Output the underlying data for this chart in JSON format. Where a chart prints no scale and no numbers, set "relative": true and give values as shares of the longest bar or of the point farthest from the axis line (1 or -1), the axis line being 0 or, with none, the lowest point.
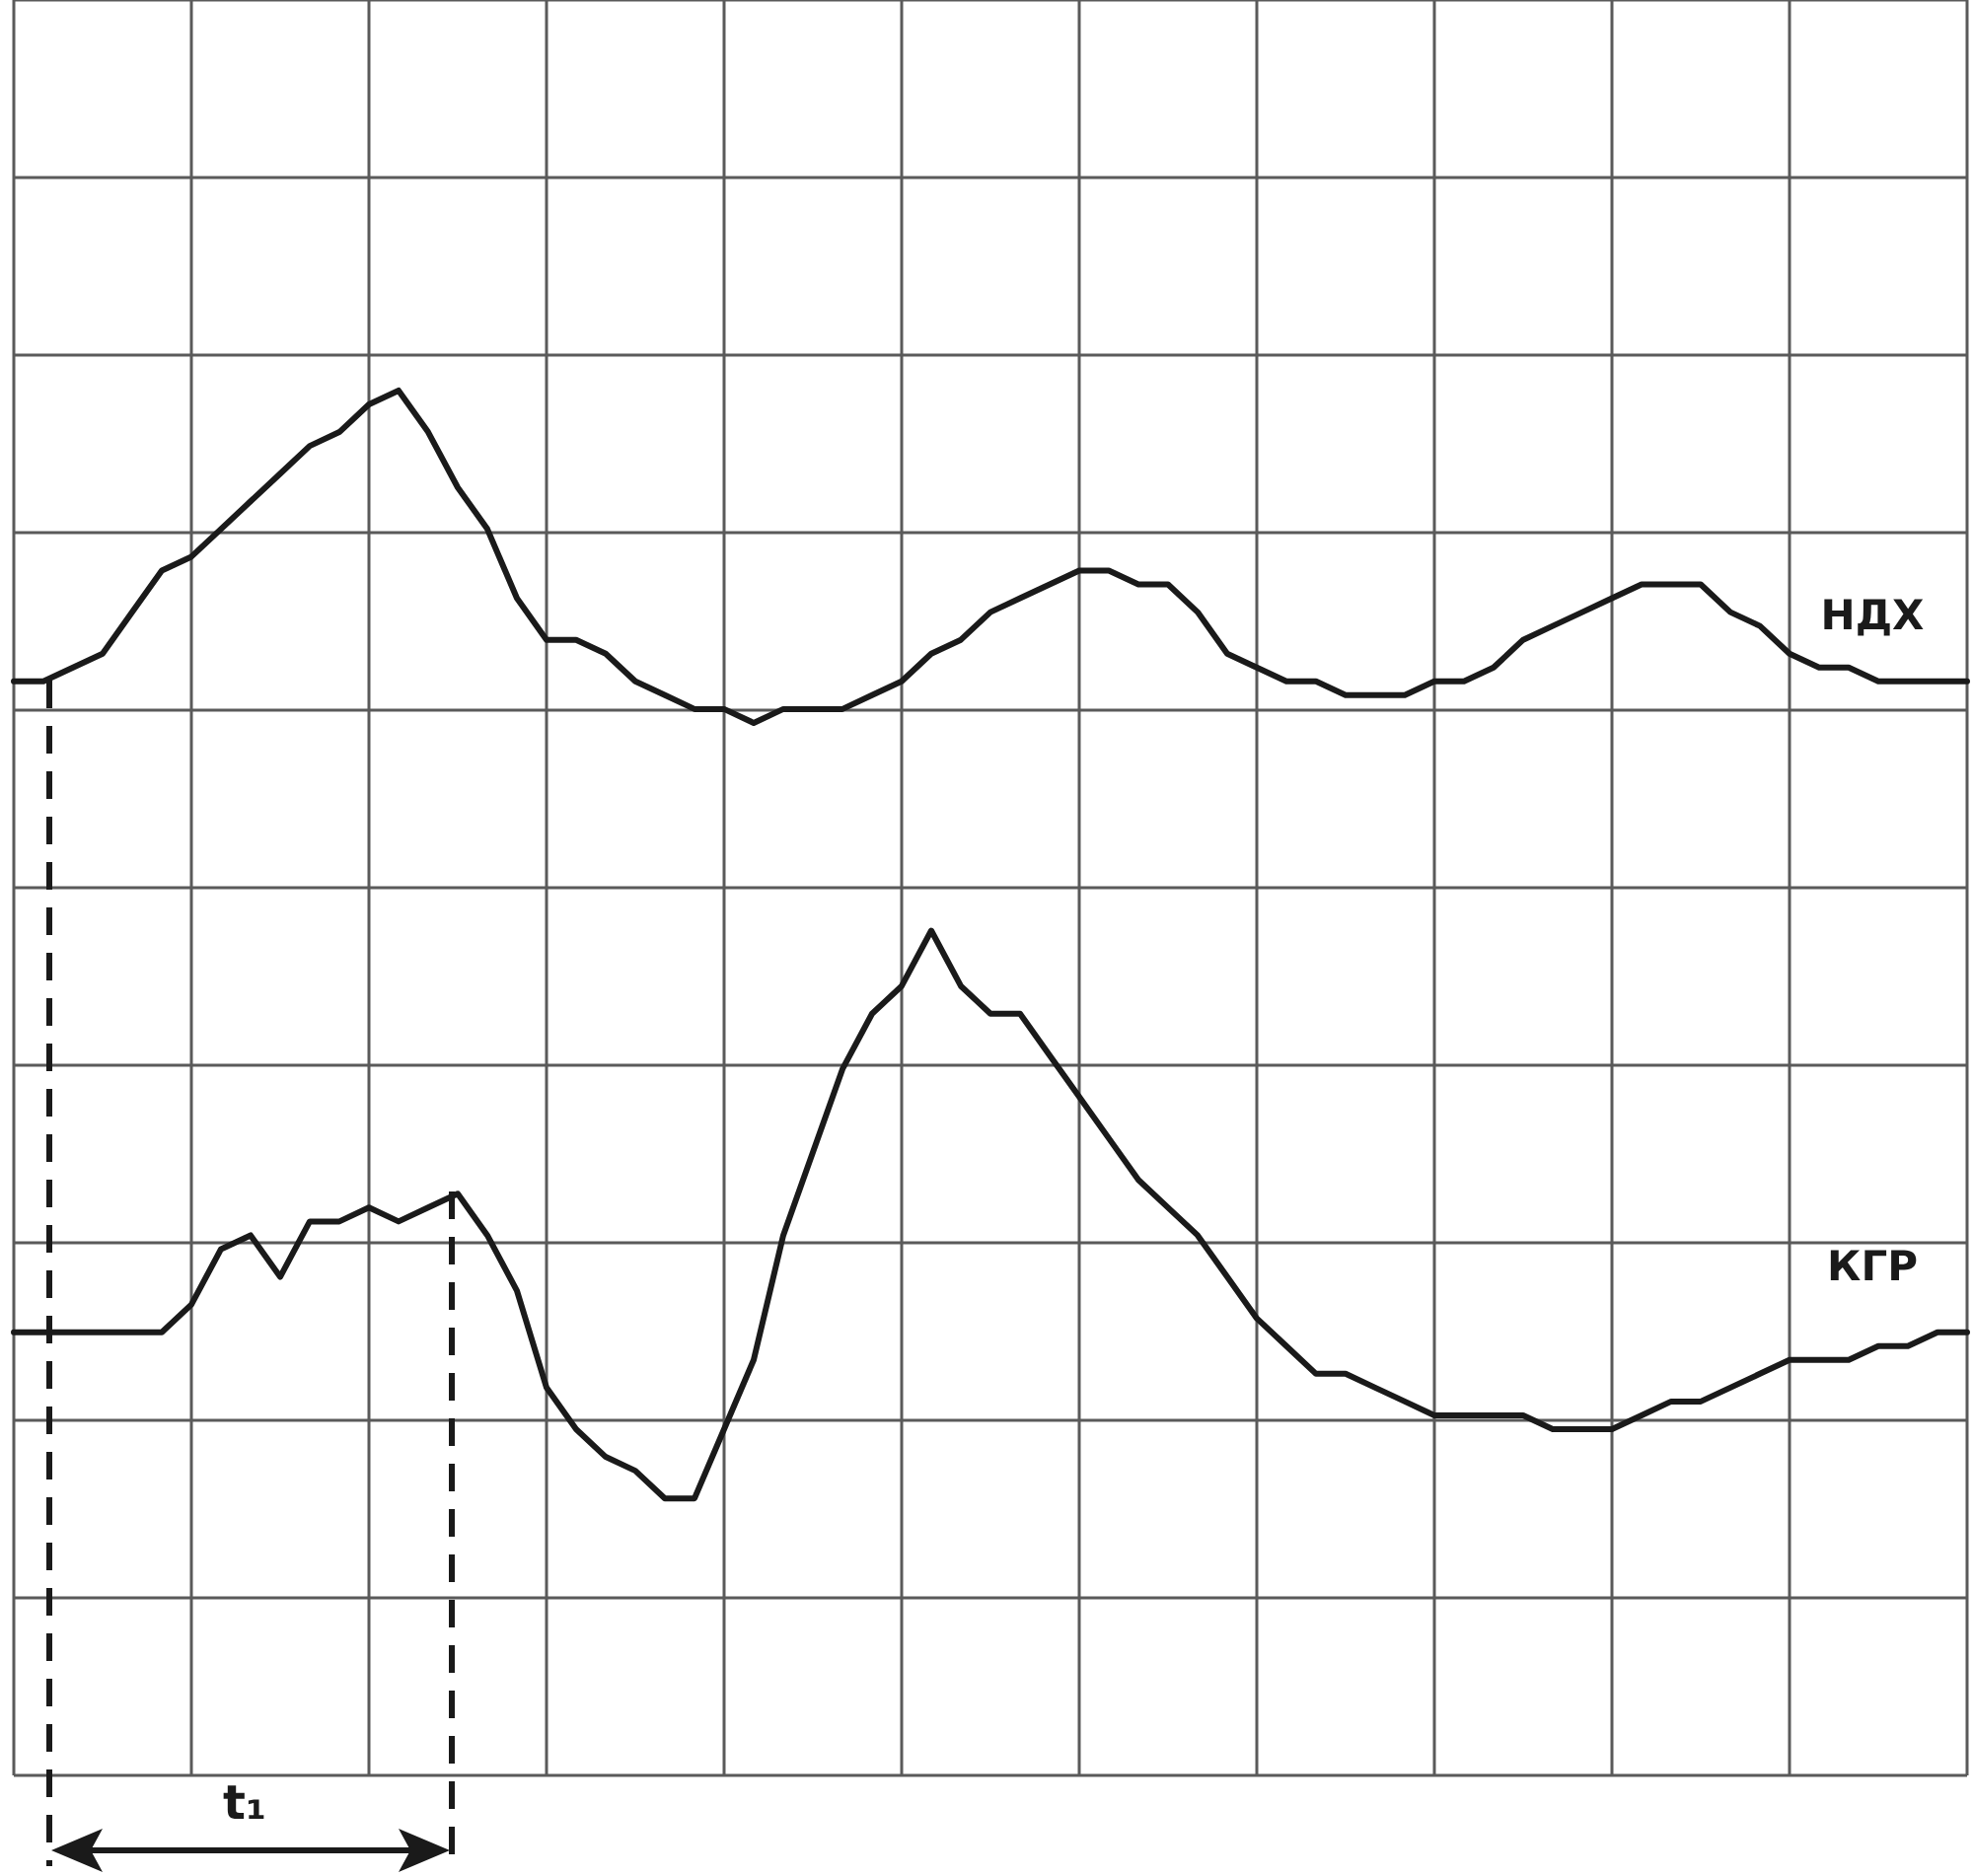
{
  "chart_data": {
    "type": "line",
    "relative": true,
    "grid": true,
    "legend": false,
    "marker": "none",
    "line_style": "solid",
    "categories": [
      null,
      null,
      null,
      null,
      null,
      null,
      null,
      null,
      null,
      null,
      null,
      null,
      null,
      null,
      null,
      null,
      null,
      null,
      null,
      null,
      null,
      null,
      null,
      null,
      null,
      null,
      null,
      null,
      null,
      null,
      null,
      null,
      null,
      null,
      null,
      null,
      null,
      null,
      null,
      null,
      null,
      null,
      null,
      null,
      null,
      null,
      null,
      null,
      null,
      null,
      null,
      null,
      null,
      null,
      null,
      null,
      null,
      null,
      null,
      null,
      null,
      null,
      null,
      null,
      null,
      null,
      null
    ],
    "annotations": [
      "t₁"
    ],
    "series": [
      {
        "name": "НДХ",
        "color": "#1a1a1a",
        "values": [
          0.79,
          0.79,
          0.8,
          0.81,
          0.84,
          0.87,
          0.88,
          0.9,
          0.92,
          0.94,
          0.96,
          0.97,
          0.99,
          1,
          0.97,
          0.93,
          0.9,
          0.85,
          0.82,
          0.82,
          0.81,
          0.79,
          0.78,
          0.77,
          0.77,
          0.76,
          0.77,
          0.77,
          0.77,
          0.78,
          0.79,
          0.81,
          0.82,
          0.84,
          0.85,
          0.86,
          0.87,
          0.87,
          0.86,
          0.86,
          0.84,
          0.81,
          0.8,
          0.79,
          0.79,
          0.78,
          0.78,
          0.78,
          0.79,
          0.79,
          0.8,
          0.82,
          0.83,
          0.84,
          0.85,
          0.86,
          0.86,
          0.86,
          0.84,
          0.83,
          0.81,
          0.8,
          0.8,
          0.79,
          0.79,
          0.79,
          0.79
        ]
      },
      {
        "name": "КГР",
        "color": "#1a1a1a",
        "values": [
          0.32,
          0.32,
          0.32,
          0.32,
          0.32,
          0.32,
          0.34,
          0.38,
          0.39,
          0.36,
          0.4,
          0.4,
          0.41,
          0.4,
          0.41,
          0.42,
          0.39,
          0.35,
          0.28,
          0.25,
          0.23,
          0.22,
          0.2,
          0.2,
          0.25,
          0.3,
          0.39,
          0.45,
          0.51,
          0.55,
          0.57,
          0.61,
          0.57,
          0.55,
          0.55,
          0.52,
          0.49,
          0.46,
          0.43,
          0.41,
          0.39,
          0.36,
          0.33,
          0.31,
          0.29,
          0.29,
          0.28,
          0.27,
          0.26,
          0.26,
          0.26,
          0.26,
          0.25,
          0.25,
          0.25,
          0.26,
          0.27,
          0.27,
          0.28,
          0.29,
          0.3,
          0.3,
          0.3,
          0.31,
          0.31,
          0.32,
          0.32
        ]
      }
    ]
  }
}
